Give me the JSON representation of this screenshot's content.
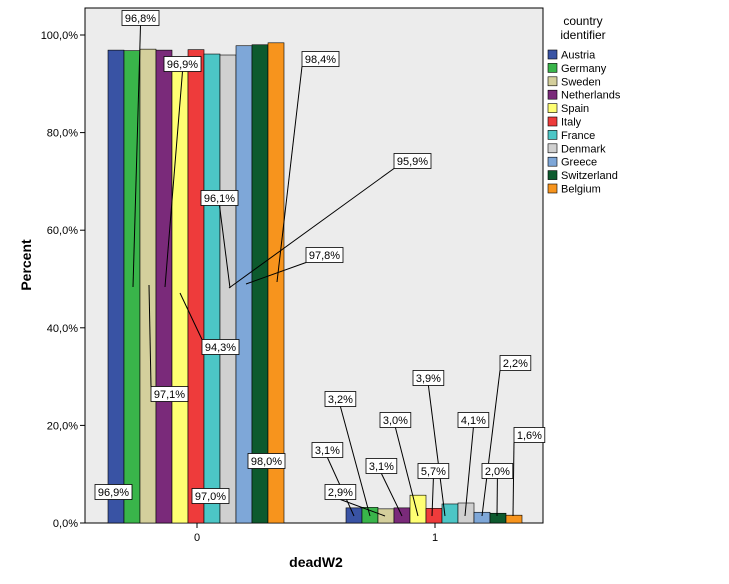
{
  "chart_data": {
    "type": "bar",
    "title": "",
    "xlabel": "deadW2",
    "ylabel": "Percent",
    "categories": [
      "0",
      "1"
    ],
    "ylim": [
      0,
      100
    ],
    "yticks": [
      "0,0%",
      "20,0%",
      "40,0%",
      "60,0%",
      "80,0%",
      "100,0%"
    ],
    "ytick_values": [
      0,
      20,
      40,
      60,
      80,
      100
    ],
    "legend_title": "country identifier",
    "legend_position": "right",
    "grid": false,
    "series": [
      {
        "name": "Austria",
        "color": "#3953a4",
        "values": [
          96.9,
          3.1
        ],
        "labels": [
          "96,9%",
          "3,1%"
        ]
      },
      {
        "name": "Germany",
        "color": "#39b54a",
        "values": [
          96.8,
          3.2
        ],
        "labels": [
          "96,8%",
          "3,2%"
        ]
      },
      {
        "name": "Sweden",
        "color": "#d4cf9c",
        "values": [
          97.1,
          2.9
        ],
        "labels": [
          "97,1%",
          "2,9%"
        ]
      },
      {
        "name": "Netherlands",
        "color": "#7a2a7a",
        "values": [
          96.9,
          3.1
        ],
        "labels": [
          "96,9%",
          "3,1%"
        ]
      },
      {
        "name": "Spain",
        "color": "#ffff73",
        "values": [
          94.3,
          5.7
        ],
        "labels": [
          "94,3%",
          "5,7%"
        ]
      },
      {
        "name": "Italy",
        "color": "#ee3b3b",
        "values": [
          97.0,
          3.0
        ],
        "labels": [
          "97,0%",
          "3,0%"
        ]
      },
      {
        "name": "France",
        "color": "#4cc6c6",
        "values": [
          96.1,
          3.9
        ],
        "labels": [
          "96,1%",
          "3,9%"
        ]
      },
      {
        "name": "Denmark",
        "color": "#d0d0d0",
        "values": [
          95.9,
          4.1
        ],
        "labels": [
          "95,9%",
          "4,1%"
        ]
      },
      {
        "name": "Greece",
        "color": "#7ea7d8",
        "values": [
          97.8,
          2.2
        ],
        "labels": [
          "97,8%",
          "2,2%"
        ]
      },
      {
        "name": "Switzerland",
        "color": "#0d5a2e",
        "values": [
          98.0,
          2.0
        ],
        "labels": [
          "98,0%",
          "2,0%"
        ]
      },
      {
        "name": "Belgium",
        "color": "#f7941d",
        "values": [
          98.4,
          1.6
        ],
        "labels": [
          "98,4%",
          "1,6%"
        ]
      }
    ]
  }
}
